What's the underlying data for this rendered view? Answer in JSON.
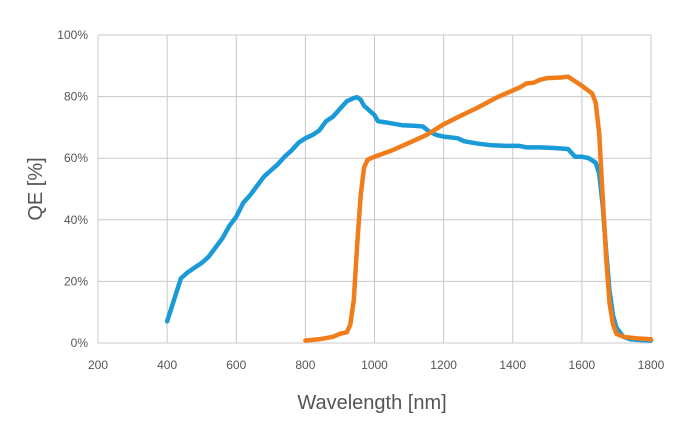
{
  "chart_data": {
    "type": "line",
    "title": "",
    "xlabel": "Wavelength [nm]",
    "ylabel": "QE [%]",
    "xlim": [
      200,
      1800
    ],
    "ylim": [
      0,
      100
    ],
    "grid": true,
    "x_ticks": [
      200,
      400,
      600,
      800,
      1000,
      1200,
      1400,
      1600,
      1800
    ],
    "x_tick_labels": [
      "200",
      "400",
      "600",
      "800",
      "1000",
      "1200",
      "1400",
      "1600",
      "1800"
    ],
    "y_ticks": [
      0,
      20,
      40,
      60,
      80,
      100
    ],
    "y_tick_labels": [
      "0%",
      "20%",
      "40%",
      "60%",
      "80%",
      "100%"
    ],
    "series": [
      {
        "color": "#1a9bd7",
        "points": [
          [
            400,
            7
          ],
          [
            420,
            14
          ],
          [
            440,
            21
          ],
          [
            460,
            23
          ],
          [
            480,
            24.5
          ],
          [
            500,
            26
          ],
          [
            520,
            28
          ],
          [
            540,
            31
          ],
          [
            560,
            34
          ],
          [
            580,
            38
          ],
          [
            600,
            41
          ],
          [
            620,
            45.5
          ],
          [
            640,
            48
          ],
          [
            660,
            51
          ],
          [
            680,
            54
          ],
          [
            700,
            56
          ],
          [
            720,
            58
          ],
          [
            740,
            60.5
          ],
          [
            760,
            62.5
          ],
          [
            780,
            65
          ],
          [
            800,
            66.5
          ],
          [
            820,
            67.5
          ],
          [
            840,
            69
          ],
          [
            860,
            72
          ],
          [
            880,
            73.5
          ],
          [
            900,
            76
          ],
          [
            920,
            78.5
          ],
          [
            940,
            79.5
          ],
          [
            950,
            79.8
          ],
          [
            960,
            79
          ],
          [
            970,
            77
          ],
          [
            980,
            76
          ],
          [
            1000,
            74
          ],
          [
            1010,
            72
          ],
          [
            1040,
            71.5
          ],
          [
            1080,
            70.7
          ],
          [
            1120,
            70.5
          ],
          [
            1140,
            70.3
          ],
          [
            1160,
            68.5
          ],
          [
            1180,
            67.5
          ],
          [
            1200,
            67
          ],
          [
            1240,
            66.5
          ],
          [
            1260,
            65.5
          ],
          [
            1300,
            64.7
          ],
          [
            1340,
            64.2
          ],
          [
            1380,
            64
          ],
          [
            1420,
            64
          ],
          [
            1440,
            63.5
          ],
          [
            1480,
            63.5
          ],
          [
            1520,
            63.3
          ],
          [
            1560,
            63
          ],
          [
            1580,
            60.5
          ],
          [
            1600,
            60.5
          ],
          [
            1620,
            60
          ],
          [
            1640,
            58.5
          ],
          [
            1650,
            55
          ],
          [
            1660,
            45
          ],
          [
            1670,
            30
          ],
          [
            1680,
            17
          ],
          [
            1690,
            9
          ],
          [
            1700,
            5
          ],
          [
            1720,
            2
          ],
          [
            1740,
            1.2
          ],
          [
            1760,
            1
          ],
          [
            1800,
            0.8
          ]
        ]
      },
      {
        "color": "#f07d1a",
        "points": [
          [
            800,
            0.8
          ],
          [
            840,
            1.2
          ],
          [
            880,
            2
          ],
          [
            900,
            3
          ],
          [
            920,
            3.5
          ],
          [
            930,
            6
          ],
          [
            940,
            14
          ],
          [
            950,
            32
          ],
          [
            960,
            48
          ],
          [
            970,
            57
          ],
          [
            980,
            59.5
          ],
          [
            1000,
            60.5
          ],
          [
            1050,
            62.5
          ],
          [
            1100,
            65
          ],
          [
            1150,
            67.5
          ],
          [
            1200,
            71
          ],
          [
            1250,
            73.8
          ],
          [
            1300,
            76.5
          ],
          [
            1350,
            79.5
          ],
          [
            1400,
            82
          ],
          [
            1420,
            83
          ],
          [
            1440,
            84.3
          ],
          [
            1460,
            84.5
          ],
          [
            1480,
            85.5
          ],
          [
            1500,
            86
          ],
          [
            1540,
            86.2
          ],
          [
            1560,
            86.5
          ],
          [
            1580,
            85
          ],
          [
            1600,
            83.5
          ],
          [
            1630,
            81
          ],
          [
            1640,
            78
          ],
          [
            1650,
            68
          ],
          [
            1660,
            48
          ],
          [
            1670,
            28
          ],
          [
            1680,
            13
          ],
          [
            1690,
            6
          ],
          [
            1700,
            3
          ],
          [
            1720,
            2
          ],
          [
            1760,
            1.5
          ],
          [
            1800,
            1.2
          ]
        ]
      }
    ]
  }
}
